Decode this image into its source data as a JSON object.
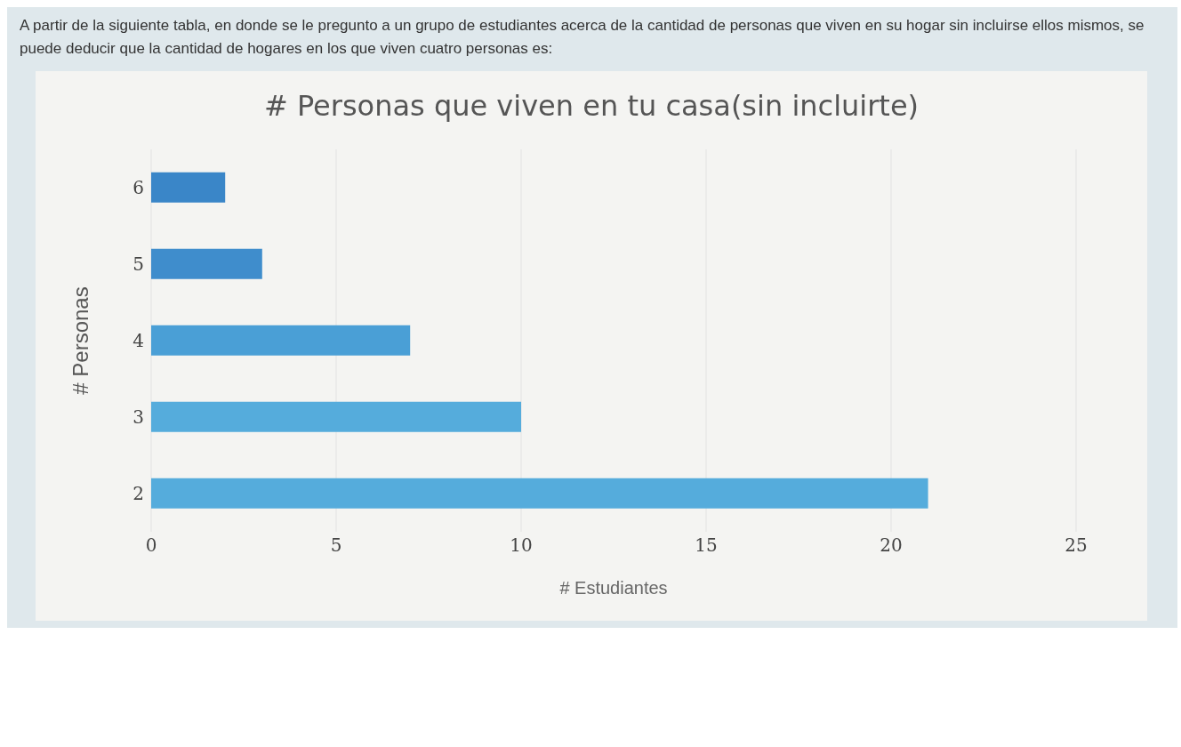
{
  "chart_data": {
    "type": "bar",
    "orientation": "horizontal",
    "title": "# Personas que viven en tu casa(sin incluirte)",
    "annotations": [
      "A partir de la siguiente tabla, en donde se le pregunto a un grupo de estudiantes acerca de la cantidad de personas que viven en su hogar sin incluirse ellos mismos, se puede deducir que la cantidad de hogares en los que viven cuatro personas es:"
    ],
    "categories": [
      "6",
      "5",
      "4",
      "3",
      "2"
    ],
    "values": [
      2,
      3,
      7,
      10,
      21
    ],
    "colors": [
      "#3a86c8",
      "#3f8dcc",
      "#4a9fd6",
      "#55acdc",
      "#55acdc"
    ],
    "xlabel": "# Estudiantes",
    "ylabel": "# Personas",
    "xlim": [
      0,
      25
    ],
    "xticks": [
      0,
      5,
      10,
      15,
      20,
      25
    ],
    "grid": "x"
  }
}
